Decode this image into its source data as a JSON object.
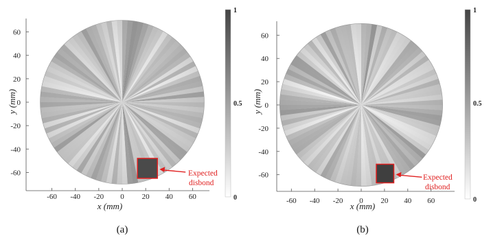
{
  "figure": {
    "panels": [
      {
        "id": "a",
        "caption": "(a)",
        "xlabel_var": "x",
        "xlabel_unit": "(mm)",
        "ylabel_var": "y",
        "ylabel_unit": "(mm)",
        "annotation_line1": "Expected",
        "annotation_line2": "disbond",
        "colorbar_ticks": [
          "1",
          "0.5",
          "0"
        ]
      },
      {
        "id": "b",
        "caption": "(b)",
        "xlabel_var": "x",
        "xlabel_unit": "(mm)",
        "ylabel_var": "y",
        "ylabel_unit": "(mm)",
        "annotation_line1": "Expected",
        "annotation_line2": "disbond",
        "colorbar_ticks": [
          "1",
          "0.5",
          "0"
        ]
      }
    ]
  },
  "chart_data": [
    {
      "type": "heatmap",
      "title": "",
      "xlabel": "x (mm)",
      "ylabel": "y (mm)",
      "xlim": [
        -75,
        75
      ],
      "ylim": [
        -75,
        75
      ],
      "x_ticks": [
        -60,
        -40,
        -20,
        0,
        20,
        40,
        60
      ],
      "y_ticks": [
        60,
        40,
        20,
        0,
        -20,
        -40,
        -60
      ],
      "colorbar": {
        "min": 0,
        "max": 1,
        "ticks": [
          1,
          0.5,
          0
        ],
        "colormap": "gray-reversed"
      },
      "disk_radius": 70,
      "disbond_box": {
        "x": [
          13,
          30
        ],
        "y": [
          -65,
          -48
        ]
      },
      "annotation": "Expected disbond",
      "accent_color": "#e02020"
    },
    {
      "type": "heatmap",
      "title": "",
      "xlabel": "x (mm)",
      "ylabel": "y (mm)",
      "xlim": [
        -75,
        75
      ],
      "ylim": [
        -75,
        75
      ],
      "x_ticks": [
        -60,
        -40,
        -20,
        0,
        20,
        40,
        60
      ],
      "y_ticks": [
        60,
        40,
        20,
        0,
        -20,
        -40,
        -60
      ],
      "colorbar": {
        "min": 0,
        "max": 1,
        "ticks": [
          1,
          0.5,
          0
        ],
        "colormap": "gray-reversed"
      },
      "disk_radius": 70,
      "disbond_box": {
        "x": [
          13,
          28
        ],
        "y": [
          -67,
          -51
        ]
      },
      "annotation": "Expected disbond",
      "accent_color": "#e02020"
    }
  ]
}
